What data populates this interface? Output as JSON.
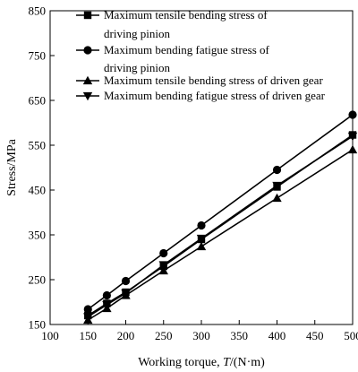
{
  "chart_data": {
    "type": "line",
    "xlabel": {
      "prefix": "Working torque, ",
      "symbol": "T",
      "suffix": "/(N·m)"
    },
    "ylabel": "Stress/MPa",
    "xlim": [
      100,
      500
    ],
    "ylim": [
      150,
      850
    ],
    "xticks": [
      100,
      150,
      200,
      250,
      300,
      350,
      400,
      450,
      500
    ],
    "yticks": [
      150,
      250,
      350,
      450,
      550,
      650,
      750,
      850
    ],
    "x": [
      150,
      175,
      200,
      250,
      300,
      400,
      500
    ],
    "legend_position": "top-left",
    "grid": false,
    "series": [
      {
        "name_lines": [
          "Maximum tensile bending stress of",
          "driving pinion"
        ],
        "marker": "square",
        "values": [
          170,
          197,
          222,
          280,
          340,
          457,
          573
        ]
      },
      {
        "name_lines": [
          "Maximum bending fatigue stress of",
          "driving pinion"
        ],
        "marker": "circle",
        "values": [
          184,
          215,
          247,
          309,
          371,
          495,
          618
        ]
      },
      {
        "name_lines": [
          "Maximum tensile bending stress of driven gear"
        ],
        "marker": "triangle-up",
        "values": [
          160,
          186,
          215,
          270,
          324,
          432,
          540
        ]
      },
      {
        "name_lines": [
          "Maximum bending fatigue stress of driven gear"
        ],
        "marker": "triangle-down",
        "values": [
          167,
          194,
          220,
          283,
          342,
          460,
          570
        ]
      }
    ]
  }
}
